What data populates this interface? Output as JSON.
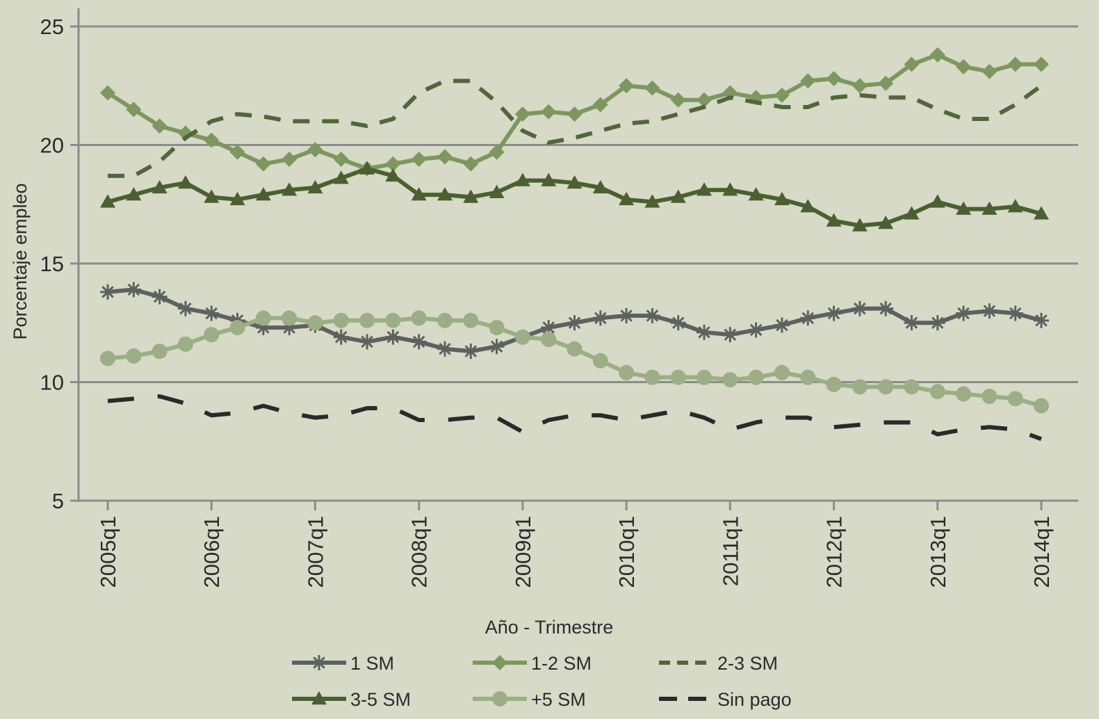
{
  "chart_data": {
    "type": "line",
    "title": "",
    "xlabel": "Año - Trimestre",
    "ylabel": "Porcentaje empleo",
    "ylim": [
      5,
      25
    ],
    "yticks": [
      "5",
      "10",
      "15",
      "20",
      "25"
    ],
    "xtick_labels": [
      "2005q1",
      "2006q1",
      "2007q1",
      "2008q1",
      "2009q1",
      "2010q1",
      "2011q1",
      "2012q1",
      "2013q1",
      "2014q1"
    ],
    "grid": "horizontal",
    "legend_position": "bottom",
    "x": [
      "2005q1",
      "2005q2",
      "2005q3",
      "2005q4",
      "2006q1",
      "2006q2",
      "2006q3",
      "2006q4",
      "2007q1",
      "2007q2",
      "2007q3",
      "2007q4",
      "2008q1",
      "2008q2",
      "2008q3",
      "2008q4",
      "2009q1",
      "2009q2",
      "2009q3",
      "2009q4",
      "2010q1",
      "2010q2",
      "2010q3",
      "2010q4",
      "2011q1",
      "2011q2",
      "2011q3",
      "2011q4",
      "2012q1",
      "2012q2",
      "2012q3",
      "2012q4",
      "2013q1",
      "2013q2",
      "2013q3",
      "2013q4",
      "2014q1"
    ],
    "series": [
      {
        "name": "1 SM",
        "color": "#5f6160",
        "marker": "asterisk",
        "dash": "solid",
        "values": [
          13.8,
          13.9,
          13.6,
          13.1,
          12.9,
          12.6,
          12.3,
          12.3,
          12.4,
          11.9,
          11.7,
          11.9,
          11.7,
          11.4,
          11.3,
          11.5,
          11.9,
          12.3,
          12.5,
          12.7,
          12.8,
          12.8,
          12.5,
          12.1,
          12.0,
          12.2,
          12.4,
          12.7,
          12.9,
          13.1,
          13.1,
          12.5,
          12.5,
          12.9,
          13.0,
          12.9,
          12.6
        ]
      },
      {
        "name": "1-2 SM",
        "color": "#7d975f",
        "marker": "diamond",
        "dash": "solid",
        "values": [
          22.2,
          21.5,
          20.8,
          20.5,
          20.2,
          19.7,
          19.2,
          19.4,
          19.8,
          19.4,
          19.0,
          19.2,
          19.4,
          19.5,
          19.2,
          19.7,
          21.3,
          21.4,
          21.3,
          21.7,
          22.5,
          22.4,
          21.9,
          21.9,
          22.2,
          22.0,
          22.1,
          22.7,
          22.8,
          22.5,
          22.6,
          23.4,
          23.8,
          23.3,
          23.1,
          23.4,
          23.4
        ]
      },
      {
        "name": "2-3 SM",
        "color": "#52663a",
        "marker": "none",
        "dash": "dashed",
        "values": [
          18.7,
          18.7,
          19.3,
          20.3,
          21.0,
          21.3,
          21.2,
          21.0,
          21.0,
          21.0,
          20.8,
          21.1,
          22.2,
          22.7,
          22.7,
          21.8,
          20.6,
          20.1,
          20.3,
          20.6,
          20.9,
          21.0,
          21.3,
          21.6,
          22.0,
          21.8,
          21.6,
          21.6,
          22.0,
          22.1,
          22.0,
          22.0,
          21.5,
          21.1,
          21.1,
          21.7,
          22.5
        ]
      },
      {
        "name": "3-5 SM",
        "color": "#4a6030",
        "marker": "triangle",
        "dash": "solid",
        "values": [
          17.6,
          17.9,
          18.2,
          18.4,
          17.8,
          17.7,
          17.9,
          18.1,
          18.2,
          18.6,
          19.0,
          18.7,
          17.9,
          17.9,
          17.8,
          18.0,
          18.5,
          18.5,
          18.4,
          18.2,
          17.7,
          17.6,
          17.8,
          18.1,
          18.1,
          17.9,
          17.7,
          17.4,
          16.8,
          16.6,
          16.7,
          17.1,
          17.6,
          17.3,
          17.3,
          17.4,
          17.1
        ]
      },
      {
        "name": "+5 SM",
        "color": "#9cae85",
        "marker": "circle",
        "dash": "solid",
        "values": [
          11.0,
          11.1,
          11.3,
          11.6,
          12.0,
          12.3,
          12.7,
          12.7,
          12.5,
          12.6,
          12.6,
          12.6,
          12.7,
          12.6,
          12.6,
          12.3,
          11.9,
          11.8,
          11.4,
          10.9,
          10.4,
          10.2,
          10.2,
          10.2,
          10.1,
          10.2,
          10.4,
          10.2,
          9.9,
          9.8,
          9.8,
          9.8,
          9.6,
          9.5,
          9.4,
          9.3,
          9.0
        ]
      },
      {
        "name": "Sin pago",
        "color": "#2a2a2a",
        "marker": "none",
        "dash": "longdash",
        "values": [
          9.2,
          9.3,
          9.4,
          9.1,
          8.6,
          8.7,
          9.0,
          8.7,
          8.5,
          8.6,
          8.9,
          8.9,
          8.4,
          8.4,
          8.5,
          8.5,
          7.9,
          8.4,
          8.6,
          8.6,
          8.4,
          8.6,
          8.8,
          8.5,
          8.0,
          8.3,
          8.5,
          8.5,
          8.1,
          8.2,
          8.3,
          8.3,
          7.8,
          8.0,
          8.1,
          8.0,
          7.6
        ]
      }
    ]
  }
}
